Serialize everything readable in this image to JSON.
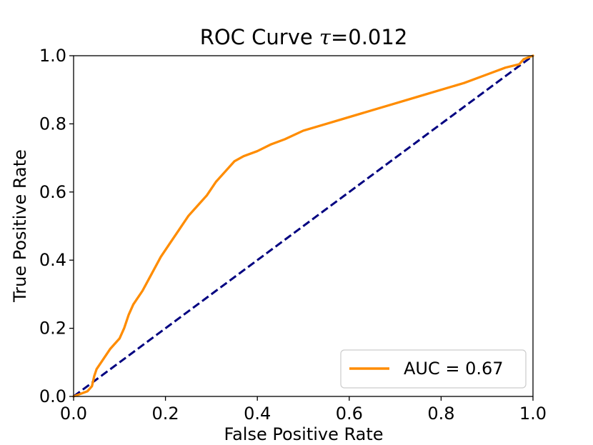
{
  "chart_data": {
    "type": "line",
    "title_prefix": "ROC Curve ",
    "title_tau": "τ",
    "title_suffix": "=0.012",
    "xlabel": "False Positive Rate",
    "ylabel": "True Positive Rate",
    "xlim": [
      0.0,
      1.0
    ],
    "ylim": [
      0.0,
      1.0
    ],
    "x_ticks": [
      0.0,
      0.2,
      0.4,
      0.6,
      0.8,
      1.0
    ],
    "x_tick_labels": [
      "0.0",
      "0.2",
      "0.4",
      "0.6",
      "0.8",
      "1.0"
    ],
    "y_ticks": [
      0.0,
      0.2,
      0.4,
      0.6,
      0.8,
      1.0
    ],
    "y_tick_labels": [
      "0.0",
      "0.2",
      "0.4",
      "0.6",
      "0.8",
      "1.0"
    ],
    "grid": false,
    "legend_position": "lower-right",
    "series": [
      {
        "name": "AUC = 0.67",
        "color": "#ff8c00",
        "style": "solid",
        "x": [
          0.0,
          0.01,
          0.03,
          0.04,
          0.045,
          0.05,
          0.06,
          0.08,
          0.1,
          0.11,
          0.12,
          0.13,
          0.15,
          0.17,
          0.19,
          0.21,
          0.23,
          0.25,
          0.27,
          0.29,
          0.31,
          0.33,
          0.35,
          0.37,
          0.4,
          0.43,
          0.46,
          0.5,
          0.55,
          0.6,
          0.65,
          0.7,
          0.75,
          0.8,
          0.85,
          0.9,
          0.94,
          0.97,
          0.98,
          0.99,
          1.0
        ],
        "y": [
          0.0,
          0.005,
          0.015,
          0.03,
          0.06,
          0.08,
          0.1,
          0.14,
          0.17,
          0.2,
          0.24,
          0.27,
          0.31,
          0.36,
          0.41,
          0.45,
          0.49,
          0.53,
          0.56,
          0.59,
          0.63,
          0.66,
          0.69,
          0.705,
          0.72,
          0.74,
          0.755,
          0.78,
          0.8,
          0.82,
          0.84,
          0.86,
          0.88,
          0.9,
          0.92,
          0.945,
          0.965,
          0.975,
          0.99,
          0.995,
          1.0
        ]
      },
      {
        "name": "",
        "color": "#000080",
        "style": "dashed",
        "x": [
          0.0,
          1.0
        ],
        "y": [
          0.0,
          1.0
        ]
      }
    ]
  }
}
